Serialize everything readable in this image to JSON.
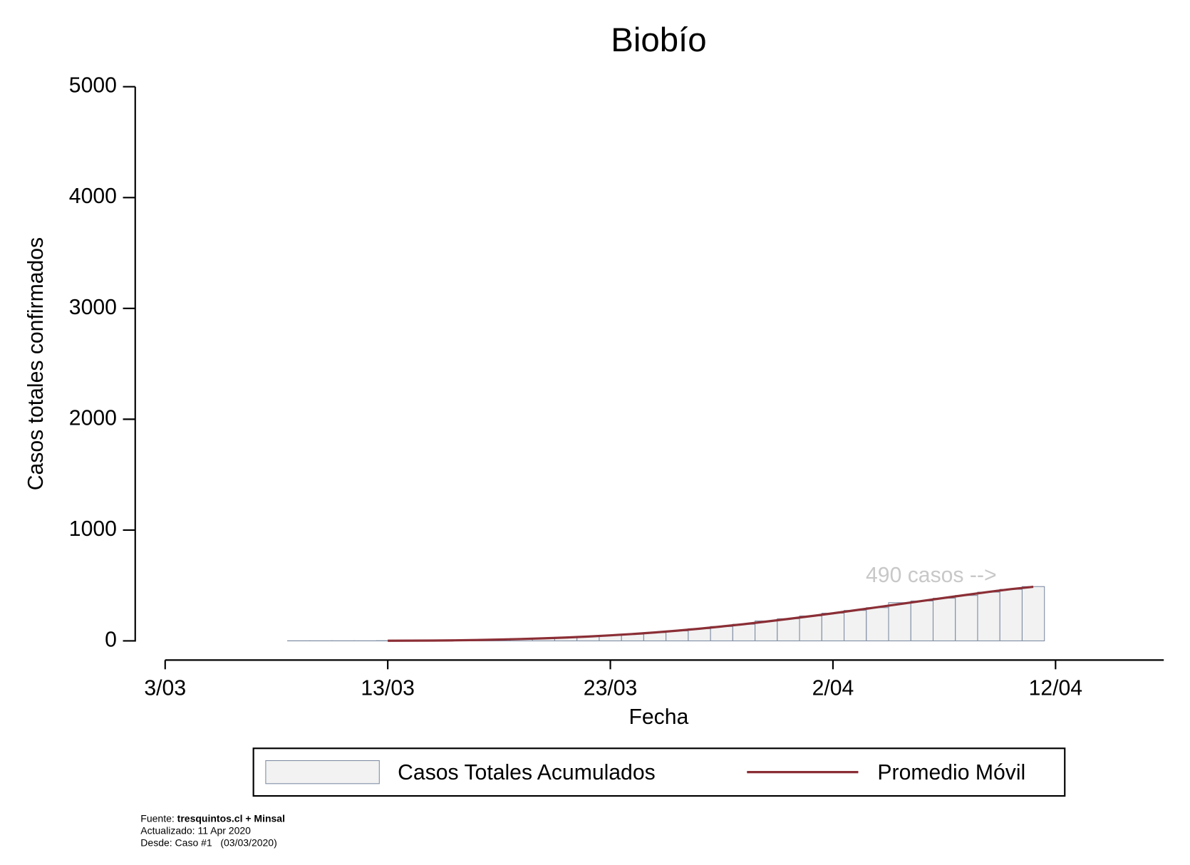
{
  "chart_data": {
    "type": "bar",
    "title": "Biobío",
    "x_label": "Fecha",
    "y_label": "Casos totales confirmados",
    "categories": [
      "3/03",
      null,
      null,
      null,
      null,
      null,
      null,
      null,
      null,
      null,
      "13/03",
      null,
      null,
      null,
      null,
      null,
      null,
      null,
      null,
      null,
      "23/03",
      null,
      null,
      null,
      null,
      null,
      null,
      null,
      null,
      null,
      "2/04",
      null,
      null,
      null,
      null,
      null,
      null,
      null,
      null,
      null,
      "12/04",
      null,
      null,
      null,
      null
    ],
    "series": [
      {
        "name": "Casos Totales Acumulados",
        "type": "bar",
        "color": "#f2f2f2",
        "edge_color": "#7d8ca3",
        "values": [
          null,
          null,
          null,
          null,
          null,
          null,
          1,
          1,
          1,
          1,
          2,
          3,
          5,
          8,
          10,
          15,
          20,
          25,
          30,
          40,
          50,
          60,
          75,
          90,
          110,
          130,
          150,
          180,
          200,
          225,
          250,
          275,
          300,
          345,
          360,
          385,
          410,
          440,
          465,
          490,
          null,
          null,
          null,
          null,
          null
        ]
      },
      {
        "name": "Promedio Móvil",
        "type": "line",
        "color": "#8b2e35",
        "values": [
          null,
          null,
          null,
          null,
          null,
          null,
          null,
          null,
          null,
          null,
          1,
          2,
          3,
          5,
          8,
          12,
          17,
          23,
          30,
          39,
          50,
          62,
          76,
          92,
          110,
          130,
          151,
          174,
          198,
          223,
          249,
          276,
          304,
          332,
          360,
          388,
          415,
          442,
          467,
          488,
          null,
          null,
          null,
          null,
          null
        ]
      }
    ],
    "ylim": [
      0,
      5000
    ],
    "yticks": [
      0,
      1000,
      2000,
      3000,
      4000,
      5000
    ],
    "annotation": "490 casos -->",
    "footnote": {
      "source_prefix": "Fuente:",
      "source": "tresquintos.cl + Minsal",
      "updated": "Actualizado: 11 Apr 2020",
      "since": "Desde: Caso #1   (03/03/2020)"
    }
  }
}
